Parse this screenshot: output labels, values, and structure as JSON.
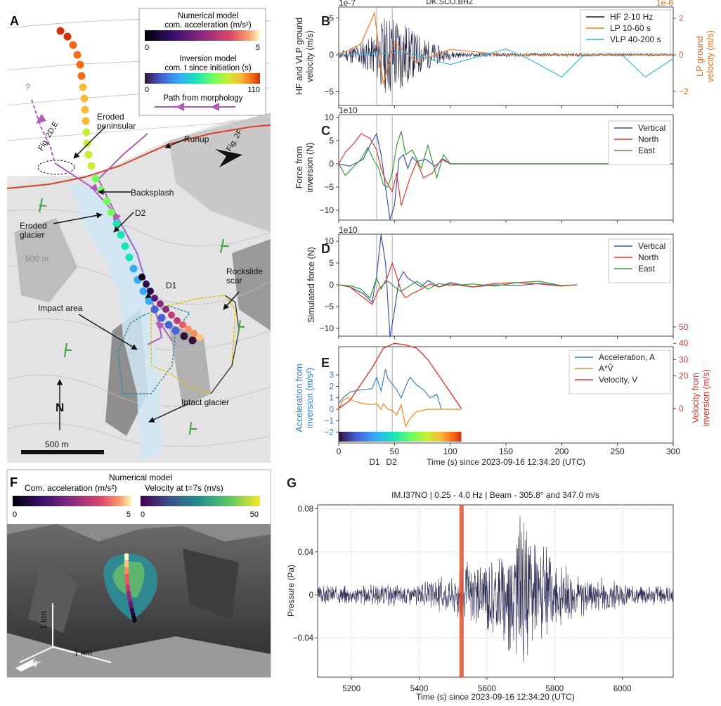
{
  "colors": {
    "hf": "#1a1a3a",
    "lp": "#ef7d22",
    "vlp": "#3cb6dc",
    "vertical": "#3a55a6",
    "north": "#d93b30",
    "east": "#3a9a3a",
    "accel": "#3a82c4",
    "av": "#ef8a22",
    "velocity": "#d23a30",
    "path": "#b05cb5",
    "orange_axis": "#e06a20",
    "blue_axis": "#2f7bbf",
    "red_axis": "#d23a30",
    "infra": "#2d2d55",
    "red_marker": "#e05030",
    "runup_line": "#d8402a",
    "yellow_dash": "#e6c000",
    "teal_dash": "#1a8ca0"
  },
  "panel_labels": {
    "a": "A",
    "b": "B",
    "c": "C",
    "d": "D",
    "e": "E",
    "f": "F",
    "g": "G"
  },
  "map_a": {
    "legend": {
      "numerical_title": "Numerical model",
      "numerical_sub": "com. acceleration (m/s²)",
      "num_min": "0",
      "num_max": "5",
      "inversion_title": "Inversion model",
      "inversion_sub": "com. t since initiation (s)",
      "inv_min": "0",
      "inv_max": "110",
      "path_label": "Path from morphology"
    },
    "labels": {
      "fig2de": "Fig. 2D,E",
      "fig2f": "Fig. 2F",
      "eroded_peninsular": "Eroded\npeninsular",
      "runup": "Runup",
      "backsplash": "Backsplash",
      "d2": "D2",
      "d1": "D1",
      "eroded_glacier": "Eroded\nglacier",
      "contour_500": "500 m",
      "rockslide_scar": "Rockslide\nscar",
      "impact_area": "Impact area",
      "intact_glacier": "Intact glacier",
      "north": "N",
      "scale": "500 m",
      "question": "?"
    }
  },
  "panel_b": {
    "title": "DK.SCO.BHZ",
    "ylabel": "HF and VLP ground\nvelocity (m/s)",
    "ylabel_right": "LP ground\nvelocity (m/s)",
    "exp_left": "1e-7",
    "exp_right": "1e-6",
    "yticks": [
      "5",
      "0",
      "−5"
    ],
    "yticks_right": [
      "2",
      "0",
      "−2"
    ],
    "legend": [
      "HF 2-10 Hz",
      "LP 10-60 s",
      "VLP 40-200 s"
    ]
  },
  "panel_c": {
    "ylabel": "Force from\ninversion (N)",
    "exp": "1e10",
    "yticks": [
      "10",
      "5",
      "0",
      "−5",
      "−10"
    ],
    "legend": [
      "Vertical",
      "North",
      "East"
    ]
  },
  "panel_d": {
    "ylabel": "Simulated force (N)",
    "exp": "1e10",
    "yticks": [
      "10",
      "5",
      "0",
      "−5",
      "−10"
    ],
    "legend": [
      "Vertical",
      "North",
      "East"
    ]
  },
  "panel_e": {
    "ylabel": "Acceleration from\ninversion (m/s²)",
    "ylabel_right": "Velocity from\ninversion (m/s)",
    "yticks": [
      "3",
      "2",
      "1",
      "0",
      "−1",
      "−2"
    ],
    "yticks_right": [
      "50",
      "40",
      "30",
      "20",
      "0"
    ],
    "legend": [
      "Acceleration, A",
      "A*V̂",
      "Velocity, V"
    ],
    "xticks": [
      "0",
      "50",
      "100",
      "150",
      "200",
      "250",
      "300"
    ],
    "xlabel": "Time (s) since 2023-09-16 12:34:20 (UTC)",
    "d1": "D1",
    "d2": "D2"
  },
  "panel_f": {
    "title": "Numerical model",
    "accel_label": "Com. acceleration (m/s²)",
    "accel_min": "0",
    "accel_max": "5",
    "vel_label": "Velocity at t=7s (m/s)",
    "vel_min": "0",
    "vel_max": "50",
    "scale_v": "1 km",
    "scale_h": "1 km",
    "north": "N"
  },
  "chart_data": [
    {
      "type": "line",
      "panel": "B",
      "title": "DK.SCO.BHZ",
      "xlim": [
        0,
        300
      ],
      "ylim": [
        -6,
        7
      ],
      "ylim_right": [
        -2.6,
        2.6
      ],
      "series": [
        {
          "name": "HF 2-10 Hz",
          "x": [
            0,
            30,
            45,
            60,
            80,
            100
          ],
          "y": [
            0.3,
            3,
            5,
            4,
            1.5,
            0.3
          ]
        },
        {
          "name": "LP 10-60 s",
          "x": [
            0,
            20,
            32,
            40,
            50,
            70,
            100,
            150,
            300
          ],
          "y": [
            0,
            0.6,
            2.3,
            -1.6,
            0.7,
            -0.4,
            0.3,
            0,
            0
          ]
        },
        {
          "name": "VLP 40-200 s",
          "x": [
            0,
            60,
            100,
            150,
            170,
            200,
            225,
            250,
            275,
            300
          ],
          "y": [
            0,
            0.3,
            -1.3,
            0.8,
            -0.5,
            -3,
            0.8,
            0.6,
            -3,
            -0.5
          ]
        }
      ]
    },
    {
      "type": "line",
      "panel": "C",
      "xlim": [
        0,
        300
      ],
      "ylim": [
        -12.5,
        10
      ],
      "series": [
        {
          "name": "Vertical",
          "x": [
            0,
            10,
            22,
            28,
            34,
            38,
            42,
            46,
            50,
            54,
            58,
            62,
            66,
            70,
            78,
            86,
            94,
            100,
            300
          ],
          "y": [
            0,
            -0.5,
            1,
            4,
            6.5,
            2,
            -5,
            -12,
            -9,
            1,
            2,
            -1,
            1.5,
            0.5,
            1,
            -0.5,
            1,
            0,
            0
          ]
        },
        {
          "name": "North",
          "x": [
            0,
            6,
            14,
            20,
            28,
            34,
            38,
            42,
            48,
            52,
            56,
            60,
            64,
            70,
            76,
            84,
            92,
            100,
            300
          ],
          "y": [
            0,
            2.5,
            4.5,
            6.5,
            5.5,
            3,
            -1,
            -3.5,
            -6,
            -2,
            -9,
            -6,
            -3,
            0.5,
            -3,
            -2,
            1,
            0,
            0
          ]
        },
        {
          "name": "East",
          "x": [
            0,
            6,
            12,
            20,
            26,
            32,
            36,
            40,
            44,
            48,
            52,
            56,
            60,
            66,
            74,
            80,
            88,
            94,
            100,
            300
          ],
          "y": [
            0,
            -2.5,
            -1,
            1,
            3.5,
            0.5,
            -1,
            -4.5,
            -5,
            -2,
            4,
            7,
            2,
            3,
            -1,
            4,
            -3,
            2,
            0,
            0
          ]
        }
      ]
    },
    {
      "type": "line",
      "panel": "D",
      "xlim": [
        0,
        300
      ],
      "ylim": [
        -12.5,
        10
      ],
      "series": [
        {
          "name": "Vertical",
          "x": [
            0,
            10,
            22,
            30,
            34,
            38,
            42,
            46,
            50,
            54,
            58,
            62,
            68,
            74,
            80,
            90,
            100,
            120,
            140,
            160,
            180,
            200,
            214
          ],
          "y": [
            0,
            -0.5,
            -2,
            -4,
            2,
            11.5,
            5,
            -12,
            -6,
            1,
            3,
            1.5,
            0.5,
            -0.5,
            1,
            -0.5,
            0.5,
            -0.5,
            0,
            -0.2,
            0.3,
            -0.2,
            0
          ]
        },
        {
          "name": "North",
          "x": [
            0,
            10,
            20,
            30,
            36,
            42,
            48,
            52,
            56,
            60,
            66,
            74,
            82,
            90,
            100,
            120,
            140,
            160,
            180,
            200,
            214
          ],
          "y": [
            0,
            -0.5,
            -2.5,
            -4.5,
            -1,
            0.5,
            5,
            2,
            -1.5,
            -3,
            -2,
            -1,
            0.2,
            -0.5,
            0.2,
            -0.5,
            0.3,
            0.5,
            0.2,
            -0.3,
            0
          ]
        },
        {
          "name": "East",
          "x": [
            0,
            12,
            20,
            28,
            34,
            38,
            42,
            46,
            50,
            56,
            62,
            70,
            80,
            90,
            100,
            120,
            140,
            160,
            180,
            200,
            214
          ],
          "y": [
            0,
            -0.3,
            -1,
            -3,
            1.5,
            -1,
            1,
            0.5,
            -0.5,
            -1.5,
            -0.5,
            0.8,
            -1,
            0.3,
            -0.2,
            0.2,
            -0.3,
            0.5,
            0.8,
            -0.2,
            0
          ]
        }
      ]
    },
    {
      "type": "line",
      "panel": "E",
      "xlim": [
        0,
        300
      ],
      "ylim": [
        -2,
        3.5
      ],
      "ylim_right": [
        -10,
        55
      ],
      "series": [
        {
          "name": "Acceleration, A",
          "x": [
            0,
            4,
            10,
            20,
            30,
            34,
            38,
            42,
            44,
            48,
            52,
            56,
            60,
            64,
            70,
            76,
            82,
            88,
            92
          ],
          "y": [
            0.5,
            1,
            1.5,
            1.7,
            1.8,
            2.8,
            1.6,
            3.5,
            2.7,
            2.2,
            1.7,
            1,
            2,
            2.8,
            2.1,
            1.7,
            1,
            1.3,
            0
          ]
        },
        {
          "name": "A*V̂",
          "x": [
            0,
            4,
            8,
            14,
            22,
            30,
            34,
            38,
            40,
            44,
            48,
            52,
            56,
            60,
            64,
            70,
            80,
            92,
            100,
            110
          ],
          "y": [
            0,
            0.8,
            1,
            0.7,
            0.5,
            0.4,
            0.5,
            0,
            0.5,
            0,
            -0.1,
            -0.5,
            0.4,
            -1.5,
            -0.8,
            -0.2,
            0,
            0,
            0,
            0
          ]
        },
        {
          "name": "Velocity, V",
          "x": [
            0,
            10,
            20,
            30,
            40,
            50,
            60,
            70,
            80,
            90,
            100,
            110
          ],
          "y": [
            0,
            5,
            15,
            25,
            37,
            40,
            39,
            37,
            30,
            20,
            10,
            0
          ]
        }
      ]
    },
    {
      "type": "line",
      "panel": "G",
      "title": "IM.I37NO | 0.25 - 4.0 Hz | Beam - 305.8° and 347.0 m/s",
      "xlabel": "Time (s) since 2023-09-16 12:34:20 (UTC)",
      "ylabel": "Pressure (Pa)",
      "xlim": [
        5100,
        6150
      ],
      "ylim": [
        -0.07,
        0.09
      ],
      "xticks": [
        "5200",
        "5400",
        "5600",
        "5800",
        "6000"
      ],
      "yticks": [
        "0.08",
        "0.04",
        "0",
        "−0.04"
      ],
      "marker_x": 5525,
      "series": [
        {
          "name": "",
          "x": [
            5100,
            5400,
            5500,
            5525,
            5600,
            5650,
            5700,
            5750,
            5800,
            5900,
            6000,
            6150
          ],
          "y": [
            0.01,
            0.012,
            0.02,
            0.03,
            0.04,
            0.05,
            0.08,
            0.06,
            0.035,
            0.02,
            0.012,
            0.01
          ]
        }
      ]
    }
  ]
}
